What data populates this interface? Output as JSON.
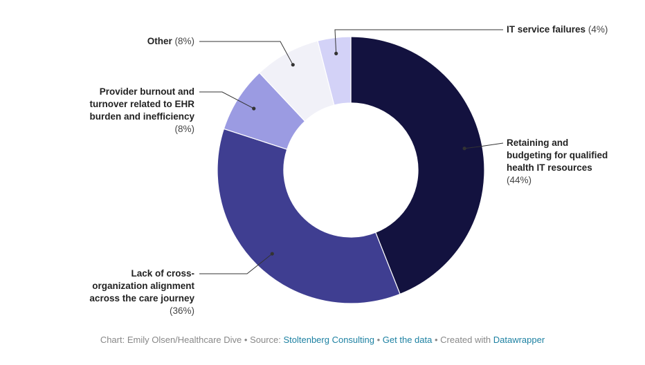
{
  "chart_data": {
    "type": "pie",
    "variant": "donut",
    "slices": [
      {
        "label": "Retaining and budgeting for qualified health IT resources",
        "lines": [
          "Retaining and",
          "budgeting for qualified",
          "health IT resources"
        ],
        "value": 44,
        "pct_label": "(44%)",
        "color": "#13123f"
      },
      {
        "label": "Lack of cross-organization alignment across the care journey",
        "lines": [
          "Lack of cross-",
          "organization alignment",
          "across the care journey"
        ],
        "value": 36,
        "pct_label": "(36%)",
        "color": "#3f3e91"
      },
      {
        "label": "Provider burnout and turnover related to EHR burden and inefficiency",
        "lines": [
          "Provider burnout and",
          "turnover related to EHR",
          "burden and inefficiency"
        ],
        "value": 8,
        "pct_label": "(8%)",
        "color": "#9b9be2"
      },
      {
        "label": "Other",
        "lines": [
          "Other"
        ],
        "value": 8,
        "pct_label": "(8%)",
        "color": "#f1f1f8"
      },
      {
        "label": "IT service failures",
        "lines": [
          "IT service failures"
        ],
        "value": 4,
        "pct_label": "(4%)",
        "color": "#d3d2f7"
      }
    ]
  },
  "footer": {
    "credit": "Chart: Emily Olsen/Healthcare Dive",
    "separator": " • ",
    "source_prefix": "Source: ",
    "source_link": "Stoltenberg Consulting",
    "data_link": "Get the data",
    "created_prefix": "Created with ",
    "created_link": "Datawrapper"
  }
}
